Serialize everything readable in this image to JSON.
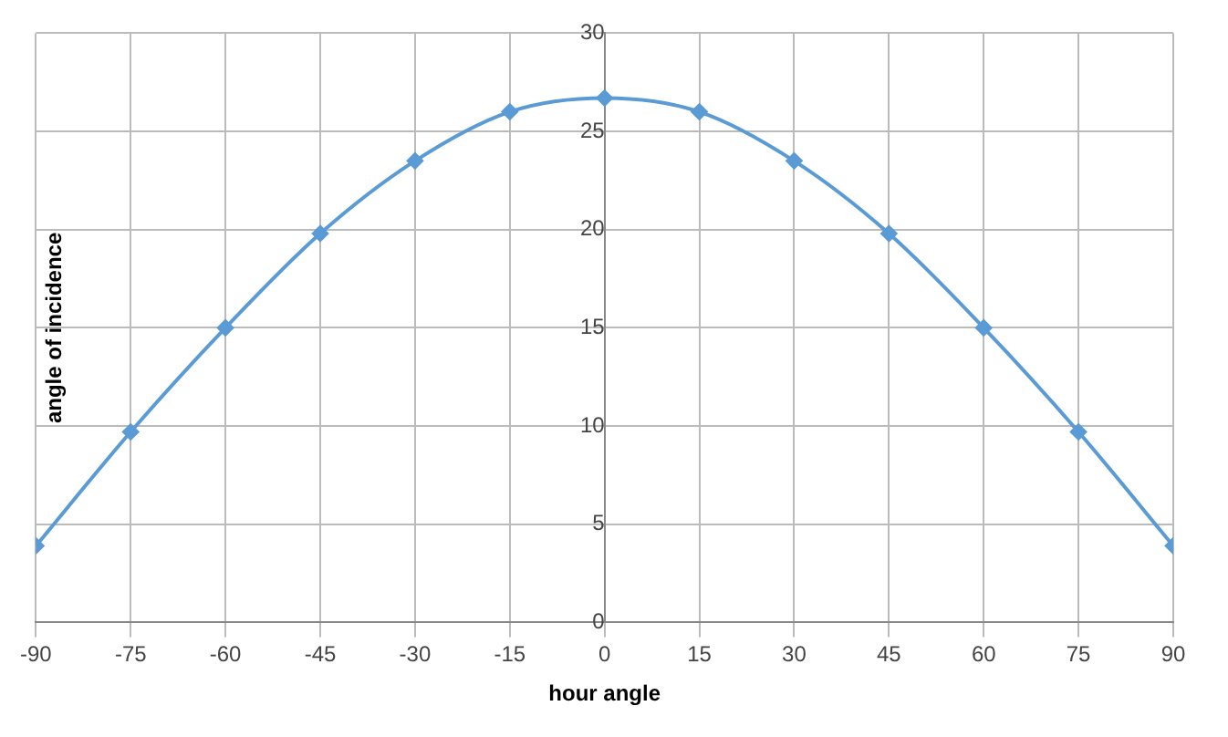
{
  "chart_data": {
    "type": "line",
    "xlabel": "hour angle",
    "ylabel": "angle of incidence",
    "x": [
      -90,
      -75,
      -60,
      -45,
      -30,
      -15,
      0,
      15,
      30,
      45,
      60,
      75,
      90
    ],
    "series": [
      {
        "color": "#5b9bd5",
        "values": [
          3.9,
          9.7,
          15,
          19.8,
          23.5,
          26,
          26.7,
          26,
          23.5,
          19.8,
          15,
          9.7,
          3.9
        ]
      }
    ],
    "xlim": [
      -90,
      90
    ],
    "xticks": [
      -90,
      -75,
      -60,
      -45,
      -30,
      -15,
      0,
      15,
      30,
      45,
      60,
      75,
      90
    ],
    "ylim": [
      0,
      30
    ],
    "yticks": [
      0,
      5,
      10,
      15,
      20,
      25,
      30
    ],
    "grid": true,
    "legend": false,
    "marker": "diamond",
    "line_style": "solid"
  }
}
